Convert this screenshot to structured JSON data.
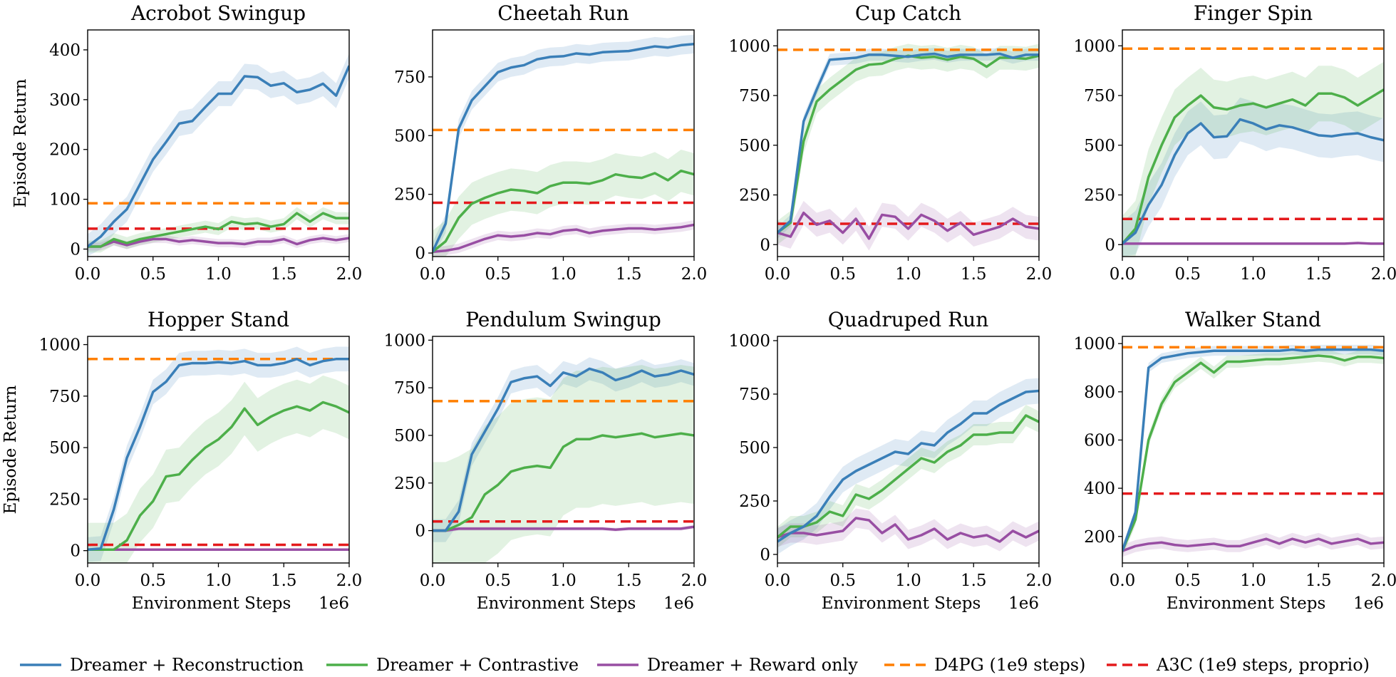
{
  "figure": {
    "xlabel": "Environment Steps",
    "ylabel": "Episode Return",
    "x_multiplier": "1e6"
  },
  "legend": [
    {
      "label": "Dreamer + Reconstruction",
      "color": "#3a7fb8",
      "style": "solid"
    },
    {
      "label": "Dreamer + Contrastive",
      "color": "#4daf4a",
      "style": "solid"
    },
    {
      "label": "Dreamer + Reward only",
      "color": "#984ea3",
      "style": "solid"
    },
    {
      "label": "D4PG (1e9 steps)",
      "color": "#ff7f00",
      "style": "dashed"
    },
    {
      "label": "A3C (1e9 steps, proprio)",
      "color": "#e41a1c",
      "style": "dashed"
    }
  ],
  "chart_data": [
    {
      "type": "line",
      "title": "Acrobot Swingup",
      "ylim": [
        -15,
        440
      ],
      "yticks": [
        0,
        100,
        200,
        300,
        400
      ],
      "xlim": [
        0,
        2
      ],
      "xticks": [
        0.0,
        0.5,
        1.0,
        1.5,
        2.0
      ],
      "x": [
        0,
        0.1,
        0.2,
        0.3,
        0.4,
        0.5,
        0.6,
        0.7,
        0.8,
        0.9,
        1.0,
        1.1,
        1.2,
        1.3,
        1.4,
        1.5,
        1.6,
        1.7,
        1.8,
        1.9,
        2.0
      ],
      "series": [
        {
          "name": "Dreamer + Reconstruction",
          "values": [
            5,
            25,
            55,
            80,
            130,
            180,
            215,
            252,
            257,
            285,
            312,
            312,
            347,
            345,
            328,
            333,
            315,
            320,
            332,
            308,
            368
          ],
          "band": 25
        },
        {
          "name": "Dreamer + Contrastive",
          "values": [
            5,
            5,
            20,
            12,
            20,
            25,
            30,
            35,
            40,
            45,
            40,
            55,
            50,
            52,
            45,
            50,
            72,
            55,
            72,
            62,
            62
          ],
          "band": 12
        },
        {
          "name": "Dreamer + Reward only",
          "values": [
            5,
            5,
            15,
            8,
            15,
            20,
            20,
            15,
            18,
            15,
            12,
            12,
            10,
            15,
            15,
            20,
            10,
            18,
            22,
            18,
            22
          ],
          "band": 8
        }
      ],
      "baselines": [
        {
          "name": "D4PG (1e9 steps)",
          "value": 92
        },
        {
          "name": "A3C (1e9 steps, proprio)",
          "value": 41
        }
      ]
    },
    {
      "type": "line",
      "title": "Cheetah Run",
      "ylim": [
        -15,
        950
      ],
      "yticks": [
        0,
        250,
        500,
        750
      ],
      "xlim": [
        0,
        2
      ],
      "xticks": [
        0.0,
        0.5,
        1.0,
        1.5,
        2.0
      ],
      "x": [
        0,
        0.1,
        0.2,
        0.3,
        0.4,
        0.5,
        0.6,
        0.7,
        0.8,
        0.9,
        1.0,
        1.1,
        1.2,
        1.3,
        1.4,
        1.5,
        1.6,
        1.7,
        1.8,
        1.9,
        2.0
      ],
      "series": [
        {
          "name": "Dreamer + Reconstruction",
          "values": [
            5,
            125,
            530,
            650,
            710,
            770,
            790,
            800,
            825,
            835,
            838,
            850,
            845,
            855,
            858,
            860,
            870,
            880,
            875,
            885,
            890
          ],
          "band": 40
        },
        {
          "name": "Dreamer + Contrastive",
          "values": [
            5,
            50,
            150,
            210,
            235,
            255,
            270,
            265,
            255,
            285,
            300,
            300,
            295,
            310,
            335,
            325,
            320,
            340,
            310,
            350,
            335
          ],
          "band": 90
        },
        {
          "name": "Dreamer + Reward only",
          "values": [
            5,
            10,
            20,
            40,
            60,
            75,
            70,
            75,
            85,
            80,
            95,
            100,
            85,
            95,
            100,
            105,
            105,
            100,
            105,
            110,
            120
          ],
          "band": 20
        }
      ],
      "baselines": [
        {
          "name": "D4PG (1e9 steps)",
          "value": 524
        },
        {
          "name": "A3C (1e9 steps, proprio)",
          "value": 214
        }
      ]
    },
    {
      "type": "line",
      "title": "Cup Catch",
      "ylim": [
        -60,
        1080
      ],
      "yticks": [
        0,
        250,
        500,
        750,
        1000
      ],
      "xlim": [
        0,
        2
      ],
      "xticks": [
        0.0,
        0.5,
        1.0,
        1.5,
        2.0
      ],
      "x": [
        0,
        0.1,
        0.2,
        0.3,
        0.4,
        0.5,
        0.6,
        0.7,
        0.8,
        0.9,
        1.0,
        1.1,
        1.2,
        1.3,
        1.4,
        1.5,
        1.6,
        1.7,
        1.8,
        1.9,
        2.0
      ],
      "series": [
        {
          "name": "Dreamer + Reconstruction",
          "values": [
            60,
            120,
            620,
            780,
            930,
            935,
            940,
            955,
            955,
            950,
            945,
            955,
            960,
            945,
            955,
            955,
            955,
            960,
            940,
            955,
            955
          ],
          "band": 30
        },
        {
          "name": "Dreamer + Contrastive",
          "values": [
            60,
            110,
            520,
            720,
            780,
            830,
            880,
            905,
            910,
            935,
            950,
            940,
            945,
            930,
            945,
            935,
            895,
            940,
            940,
            935,
            950
          ],
          "band": 60
        },
        {
          "name": "Dreamer + Reward only",
          "values": [
            60,
            40,
            160,
            100,
            120,
            60,
            130,
            30,
            150,
            140,
            80,
            150,
            120,
            70,
            110,
            50,
            70,
            90,
            130,
            90,
            80
          ],
          "band": 60
        }
      ],
      "baselines": [
        {
          "name": "D4PG (1e9 steps)",
          "value": 980
        },
        {
          "name": "A3C (1e9 steps, proprio)",
          "value": 105
        }
      ]
    },
    {
      "type": "line",
      "title": "Finger Spin",
      "ylim": [
        -60,
        1080
      ],
      "yticks": [
        0,
        250,
        500,
        750,
        1000
      ],
      "xlim": [
        0,
        2
      ],
      "xticks": [
        0.0,
        0.5,
        1.0,
        1.5,
        2.0
      ],
      "x": [
        0,
        0.1,
        0.2,
        0.3,
        0.4,
        0.5,
        0.6,
        0.7,
        0.8,
        0.9,
        1.0,
        1.1,
        1.2,
        1.3,
        1.4,
        1.5,
        1.6,
        1.7,
        1.8,
        1.9,
        2.0
      ],
      "series": [
        {
          "name": "Dreamer + Reconstruction",
          "values": [
            5,
            60,
            200,
            300,
            450,
            560,
            610,
            540,
            545,
            630,
            610,
            580,
            600,
            590,
            570,
            550,
            545,
            555,
            560,
            540,
            525
          ],
          "band": 110
        },
        {
          "name": "Dreamer + Contrastive",
          "values": [
            5,
            80,
            340,
            500,
            640,
            700,
            750,
            690,
            680,
            700,
            710,
            690,
            710,
            730,
            700,
            760,
            760,
            740,
            700,
            740,
            780
          ],
          "band": 140
        },
        {
          "name": "Dreamer + Reward only",
          "values": [
            5,
            5,
            5,
            5,
            5,
            5,
            5,
            5,
            5,
            5,
            5,
            5,
            5,
            5,
            5,
            5,
            5,
            5,
            8,
            5,
            5
          ],
          "band": 5
        }
      ],
      "baselines": [
        {
          "name": "D4PG (1e9 steps)",
          "value": 986
        },
        {
          "name": "A3C (1e9 steps, proprio)",
          "value": 129
        }
      ]
    },
    {
      "type": "line",
      "title": "Hopper Stand",
      "ylim": [
        -60,
        1040
      ],
      "yticks": [
        0,
        250,
        500,
        750,
        1000
      ],
      "xlim": [
        0,
        2
      ],
      "xticks": [
        0.0,
        0.5,
        1.0,
        1.5,
        2.0
      ],
      "x": [
        0,
        0.1,
        0.2,
        0.3,
        0.4,
        0.5,
        0.6,
        0.7,
        0.8,
        0.9,
        1.0,
        1.1,
        1.2,
        1.3,
        1.4,
        1.5,
        1.6,
        1.7,
        1.8,
        1.9,
        2.0
      ],
      "series": [
        {
          "name": "Dreamer + Reconstruction",
          "values": [
            5,
            10,
            200,
            450,
            600,
            770,
            820,
            900,
            910,
            910,
            915,
            910,
            920,
            900,
            900,
            910,
            930,
            900,
            920,
            930,
            930
          ],
          "band": 60
        },
        {
          "name": "Dreamer + Contrastive",
          "values": [
            5,
            5,
            5,
            50,
            170,
            240,
            360,
            370,
            440,
            500,
            540,
            600,
            690,
            610,
            650,
            680,
            700,
            680,
            720,
            700,
            670
          ],
          "band": 130
        },
        {
          "name": "Dreamer + Reward only",
          "values": [
            5,
            5,
            5,
            5,
            5,
            5,
            5,
            5,
            5,
            5,
            5,
            5,
            5,
            5,
            5,
            5,
            5,
            5,
            5,
            5,
            5
          ],
          "band": 5
        }
      ],
      "baselines": [
        {
          "name": "D4PG (1e9 steps)",
          "value": 930
        },
        {
          "name": "A3C (1e9 steps, proprio)",
          "value": 28
        }
      ]
    },
    {
      "type": "line",
      "title": "Pendulum Swingup",
      "ylim": [
        -170,
        1020
      ],
      "yticks": [
        0,
        250,
        500,
        750,
        1000
      ],
      "xlim": [
        0,
        2
      ],
      "xticks": [
        0.0,
        0.5,
        1.0,
        1.5,
        2.0
      ],
      "x": [
        0,
        0.1,
        0.2,
        0.3,
        0.4,
        0.5,
        0.6,
        0.7,
        0.8,
        0.9,
        1.0,
        1.1,
        1.2,
        1.3,
        1.4,
        1.5,
        1.6,
        1.7,
        1.8,
        1.9,
        2.0
      ],
      "series": [
        {
          "name": "Dreamer + Reconstruction",
          "values": [
            0,
            0,
            100,
            400,
            520,
            640,
            780,
            800,
            810,
            760,
            830,
            810,
            850,
            830,
            790,
            810,
            840,
            810,
            820,
            840,
            820
          ],
          "band": 60
        },
        {
          "name": "Dreamer + Contrastive",
          "values": [
            0,
            0,
            30,
            70,
            190,
            240,
            310,
            330,
            340,
            330,
            440,
            480,
            480,
            500,
            490,
            500,
            510,
            490,
            500,
            510,
            500
          ],
          "band": 360
        },
        {
          "name": "Dreamer + Reward only",
          "values": [
            0,
            0,
            10,
            10,
            10,
            10,
            10,
            10,
            10,
            10,
            10,
            10,
            10,
            10,
            5,
            10,
            10,
            10,
            10,
            10,
            20
          ],
          "band": 10
        }
      ],
      "baselines": [
        {
          "name": "D4PG (1e9 steps)",
          "value": 680
        },
        {
          "name": "A3C (1e9 steps, proprio)",
          "value": 48
        }
      ]
    },
    {
      "type": "line",
      "title": "Quadruped Run",
      "ylim": [
        -40,
        1020
      ],
      "yticks": [
        0,
        250,
        500,
        750,
        1000
      ],
      "xlim": [
        0,
        2
      ],
      "xticks": [
        0.0,
        0.5,
        1.0,
        1.5,
        2.0
      ],
      "x": [
        0,
        0.1,
        0.2,
        0.3,
        0.4,
        0.5,
        0.6,
        0.7,
        0.8,
        0.9,
        1.0,
        1.1,
        1.2,
        1.3,
        1.4,
        1.5,
        1.6,
        1.7,
        1.8,
        1.9,
        2.0
      ],
      "series": [
        {
          "name": "Dreamer + Reconstruction",
          "values": [
            60,
            100,
            130,
            180,
            270,
            350,
            390,
            420,
            450,
            480,
            470,
            520,
            510,
            570,
            610,
            660,
            660,
            700,
            730,
            760,
            765
          ],
          "band": 60
        },
        {
          "name": "Dreamer + Contrastive",
          "values": [
            80,
            130,
            130,
            150,
            200,
            180,
            280,
            260,
            300,
            350,
            400,
            450,
            430,
            480,
            510,
            560,
            560,
            570,
            570,
            650,
            620
          ],
          "band": 50
        },
        {
          "name": "Dreamer + Reward only",
          "values": [
            80,
            100,
            100,
            90,
            100,
            110,
            170,
            160,
            100,
            140,
            70,
            90,
            120,
            70,
            100,
            80,
            90,
            60,
            110,
            80,
            110
          ],
          "band": 45
        }
      ],
      "baselines": []
    },
    {
      "type": "line",
      "title": "Walker Stand",
      "ylim": [
        90,
        1030
      ],
      "yticks": [
        200,
        400,
        600,
        800,
        1000
      ],
      "xlim": [
        0,
        2
      ],
      "xticks": [
        0.0,
        0.5,
        1.0,
        1.5,
        2.0
      ],
      "x": [
        0,
        0.1,
        0.2,
        0.3,
        0.4,
        0.5,
        0.6,
        0.7,
        0.8,
        0.9,
        1.0,
        1.1,
        1.2,
        1.3,
        1.4,
        1.5,
        1.6,
        1.7,
        1.8,
        1.9,
        2.0
      ],
      "series": [
        {
          "name": "Dreamer + Reconstruction",
          "values": [
            140,
            300,
            900,
            940,
            950,
            960,
            965,
            970,
            970,
            970,
            970,
            970,
            970,
            975,
            970,
            975,
            975,
            975,
            975,
            975,
            970
          ],
          "band": 20
        },
        {
          "name": "Dreamer + Contrastive",
          "values": [
            140,
            270,
            600,
            750,
            840,
            880,
            920,
            880,
            925,
            925,
            930,
            935,
            935,
            940,
            945,
            950,
            945,
            930,
            945,
            945,
            940
          ],
          "band": 25
        },
        {
          "name": "Dreamer + Reward only",
          "values": [
            140,
            160,
            170,
            175,
            165,
            160,
            165,
            170,
            160,
            160,
            175,
            190,
            170,
            190,
            175,
            190,
            170,
            180,
            190,
            170,
            175
          ],
          "band": 25
        }
      ],
      "baselines": [
        {
          "name": "D4PG (1e9 steps)",
          "value": 985
        },
        {
          "name": "A3C (1e9 steps, proprio)",
          "value": 378
        }
      ]
    }
  ]
}
